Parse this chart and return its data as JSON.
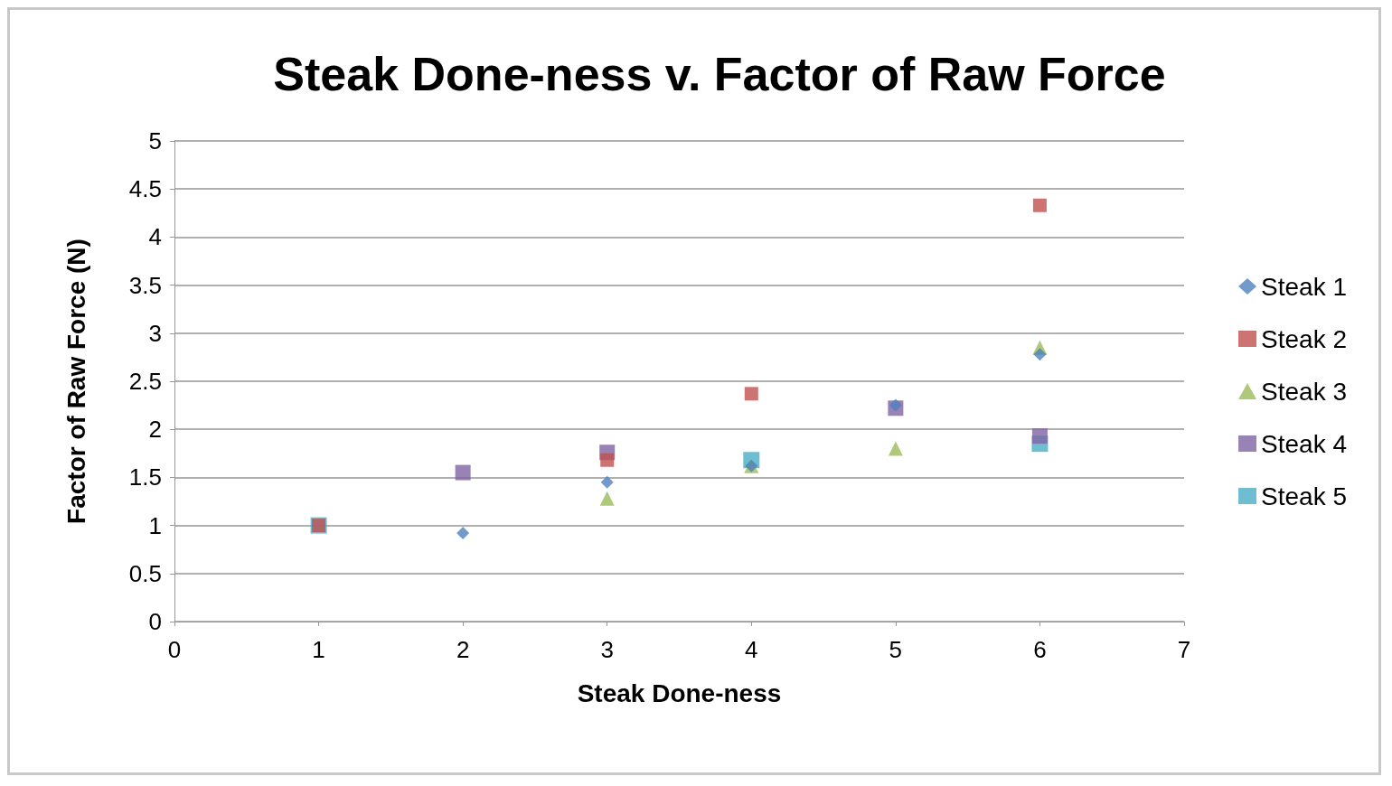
{
  "chart_data": {
    "type": "scatter",
    "title": "Steak Done-ness v. Factor of Raw Force",
    "xlabel": "Steak Done-ness",
    "ylabel": "Factor of Raw Force (N)",
    "x": [
      1,
      2,
      3,
      4,
      5,
      6
    ],
    "series": [
      {
        "name": "Steak 1",
        "color": "#4f81bd",
        "marker": "diamond",
        "values": [
          null,
          0.92,
          1.45,
          1.62,
          2.25,
          2.78
        ]
      },
      {
        "name": "Steak 2",
        "color": "#c0504d",
        "marker": "square",
        "values": [
          1,
          null,
          1.68,
          2.37,
          null,
          4.33
        ]
      },
      {
        "name": "Steak 3",
        "color": "#9bbb59",
        "marker": "triangle",
        "values": [
          null,
          null,
          1.28,
          1.62,
          1.8,
          2.85
        ]
      },
      {
        "name": "Steak 4",
        "color": "#8064a2",
        "marker": "square",
        "values": [
          null,
          1.55,
          1.76,
          null,
          2.22,
          1.93
        ]
      },
      {
        "name": "Steak 5",
        "color": "#4bacc6",
        "marker": "square",
        "values": [
          1,
          null,
          null,
          1.68,
          null,
          1.85
        ]
      }
    ],
    "xlim": [
      0,
      7
    ],
    "xticks": [
      0,
      1,
      2,
      3,
      4,
      5,
      6,
      7
    ],
    "ylim": [
      0,
      5
    ],
    "yticks": [
      0,
      0.5,
      1,
      1.5,
      2,
      2.5,
      3,
      3.5,
      4,
      4.5,
      5
    ],
    "grid": "y",
    "legend": "right"
  }
}
